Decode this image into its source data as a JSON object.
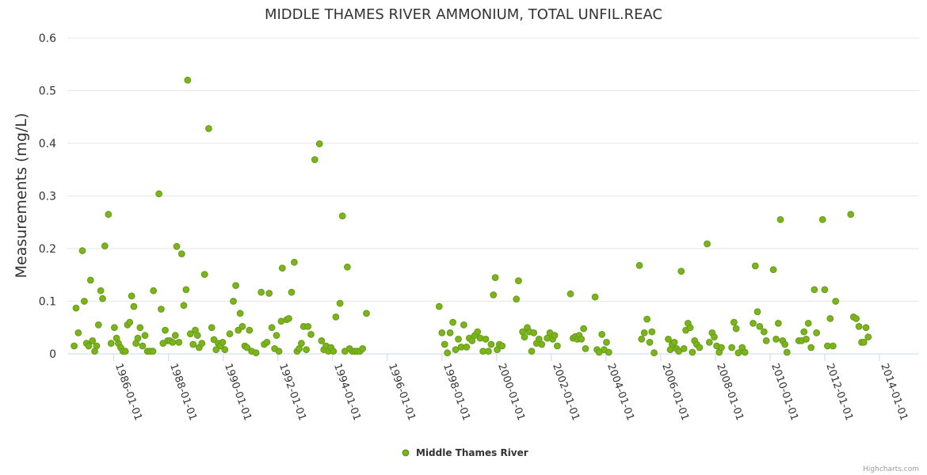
{
  "chart_data": {
    "type": "scatter",
    "title": "MIDDLE THAMES RIVER AMMONIUM, TOTAL UNFIL.REAC",
    "xlabel": "",
    "ylabel": "Measurements (mg/L)",
    "ylim": [
      0,
      0.6
    ],
    "yticks": [
      "0",
      "0.1",
      "0.2",
      "0.3",
      "0.4",
      "0.5",
      "0.6"
    ],
    "xlim": [
      1984.3,
      2015.45
    ],
    "xticks": [
      {
        "label": "1986-01-01",
        "value": 1986.0
      },
      {
        "label": "1988-01-01",
        "value": 1988.0
      },
      {
        "label": "1990-01-01",
        "value": 1990.0
      },
      {
        "label": "1992-01-01",
        "value": 1992.0
      },
      {
        "label": "1994-01-01",
        "value": 1994.0
      },
      {
        "label": "1996-01-01",
        "value": 1996.0
      },
      {
        "label": "1998-01-01",
        "value": 1998.0
      },
      {
        "label": "2000-01-01",
        "value": 2000.0
      },
      {
        "label": "2002-01-01",
        "value": 2002.0
      },
      {
        "label": "2004-01-01",
        "value": 2004.0
      },
      {
        "label": "2006-01-01",
        "value": 2006.0
      },
      {
        "label": "2008-01-01",
        "value": 2008.0
      },
      {
        "label": "2010-01-01",
        "value": 2010.0
      },
      {
        "label": "2012-01-01",
        "value": 2012.0
      },
      {
        "label": "2014-01-01",
        "value": 2014.0
      }
    ],
    "series": [
      {
        "name": "Middle Thames River",
        "color": "#6a9e1f",
        "fill": "#7cb518",
        "points": [
          [
            1984.55,
            0.015
          ],
          [
            1984.62,
            0.087
          ],
          [
            1984.7,
            0.04
          ],
          [
            1984.85,
            0.196
          ],
          [
            1984.92,
            0.1
          ],
          [
            1985.0,
            0.02
          ],
          [
            1985.08,
            0.015
          ],
          [
            1985.15,
            0.14
          ],
          [
            1985.22,
            0.025
          ],
          [
            1985.3,
            0.005
          ],
          [
            1985.37,
            0.015
          ],
          [
            1985.44,
            0.055
          ],
          [
            1985.52,
            0.12
          ],
          [
            1985.59,
            0.105
          ],
          [
            1985.67,
            0.205
          ],
          [
            1985.8,
            0.265
          ],
          [
            1985.9,
            0.02
          ],
          [
            1986.02,
            0.05
          ],
          [
            1986.1,
            0.03
          ],
          [
            1986.17,
            0.02
          ],
          [
            1986.25,
            0.012
          ],
          [
            1986.33,
            0.005
          ],
          [
            1986.42,
            0.005
          ],
          [
            1986.5,
            0.055
          ],
          [
            1986.58,
            0.06
          ],
          [
            1986.65,
            0.11
          ],
          [
            1986.73,
            0.09
          ],
          [
            1986.81,
            0.02
          ],
          [
            1986.88,
            0.03
          ],
          [
            1986.96,
            0.05
          ],
          [
            1987.05,
            0.015
          ],
          [
            1987.14,
            0.035
          ],
          [
            1987.23,
            0.005
          ],
          [
            1987.33,
            0.005
          ],
          [
            1987.43,
            0.005
          ],
          [
            1987.45,
            0.12
          ],
          [
            1987.65,
            0.304
          ],
          [
            1987.73,
            0.085
          ],
          [
            1987.8,
            0.02
          ],
          [
            1987.88,
            0.045
          ],
          [
            1987.97,
            0.025
          ],
          [
            1988.05,
            0.025
          ],
          [
            1988.15,
            0.022
          ],
          [
            1988.25,
            0.035
          ],
          [
            1988.3,
            0.204
          ],
          [
            1988.38,
            0.022
          ],
          [
            1988.48,
            0.19
          ],
          [
            1988.56,
            0.092
          ],
          [
            1988.64,
            0.122
          ],
          [
            1988.7,
            0.52
          ],
          [
            1988.8,
            0.038
          ],
          [
            1988.9,
            0.018
          ],
          [
            1988.98,
            0.045
          ],
          [
            1989.06,
            0.035
          ],
          [
            1989.12,
            0.012
          ],
          [
            1989.22,
            0.02
          ],
          [
            1989.32,
            0.151
          ],
          [
            1989.47,
            0.428
          ],
          [
            1989.58,
            0.05
          ],
          [
            1989.66,
            0.027
          ],
          [
            1989.74,
            0.008
          ],
          [
            1989.82,
            0.02
          ],
          [
            1989.9,
            0.015
          ],
          [
            1989.98,
            0.022
          ],
          [
            1990.06,
            0.008
          ],
          [
            1990.24,
            0.038
          ],
          [
            1990.37,
            0.1
          ],
          [
            1990.46,
            0.13
          ],
          [
            1990.55,
            0.045
          ],
          [
            1990.62,
            0.077
          ],
          [
            1990.7,
            0.052
          ],
          [
            1990.79,
            0.015
          ],
          [
            1990.87,
            0.012
          ],
          [
            1990.96,
            0.045
          ],
          [
            1991.04,
            0.005
          ],
          [
            1991.2,
            0.002
          ],
          [
            1991.39,
            0.117
          ],
          [
            1991.5,
            0.018
          ],
          [
            1991.6,
            0.022
          ],
          [
            1991.68,
            0.115
          ],
          [
            1991.78,
            0.05
          ],
          [
            1991.88,
            0.01
          ],
          [
            1991.95,
            0.035
          ],
          [
            1992.04,
            0.005
          ],
          [
            1992.12,
            0.062
          ],
          [
            1992.16,
            0.163
          ],
          [
            1992.32,
            0.065
          ],
          [
            1992.4,
            0.067
          ],
          [
            1992.5,
            0.117
          ],
          [
            1992.6,
            0.174
          ],
          [
            1992.7,
            0.005
          ],
          [
            1992.78,
            0.01
          ],
          [
            1992.86,
            0.02
          ],
          [
            1992.94,
            0.052
          ],
          [
            1993.04,
            0.008
          ],
          [
            1993.1,
            0.052
          ],
          [
            1993.21,
            0.037
          ],
          [
            1993.35,
            0.369
          ],
          [
            1993.52,
            0.399
          ],
          [
            1993.6,
            0.025
          ],
          [
            1993.68,
            0.008
          ],
          [
            1993.76,
            0.015
          ],
          [
            1993.85,
            0.005
          ],
          [
            1993.94,
            0.012
          ],
          [
            1994.03,
            0.005
          ],
          [
            1994.12,
            0.07
          ],
          [
            1994.27,
            0.096
          ],
          [
            1994.36,
            0.262
          ],
          [
            1994.45,
            0.005
          ],
          [
            1994.54,
            0.165
          ],
          [
            1994.62,
            0.01
          ],
          [
            1994.72,
            0.005
          ],
          [
            1994.81,
            0.005
          ],
          [
            1994.9,
            0.005
          ],
          [
            1995.0,
            0.005
          ],
          [
            1995.1,
            0.01
          ],
          [
            1995.24,
            0.077
          ],
          [
            1997.9,
            0.09
          ],
          [
            1998.0,
            0.04
          ],
          [
            1998.1,
            0.018
          ],
          [
            1998.2,
            0.002
          ],
          [
            1998.3,
            0.04
          ],
          [
            1998.4,
            0.06
          ],
          [
            1998.5,
            0.008
          ],
          [
            1998.6,
            0.028
          ],
          [
            1998.7,
            0.013
          ],
          [
            1998.8,
            0.055
          ],
          [
            1998.9,
            0.013
          ],
          [
            1999.0,
            0.03
          ],
          [
            1999.1,
            0.025
          ],
          [
            1999.2,
            0.035
          ],
          [
            1999.3,
            0.042
          ],
          [
            1999.4,
            0.03
          ],
          [
            1999.5,
            0.005
          ],
          [
            1999.6,
            0.028
          ],
          [
            1999.7,
            0.005
          ],
          [
            1999.8,
            0.018
          ],
          [
            1999.88,
            0.112
          ],
          [
            1999.95,
            0.145
          ],
          [
            2000.02,
            0.008
          ],
          [
            2000.1,
            0.018
          ],
          [
            2000.2,
            0.015
          ],
          [
            2000.72,
            0.104
          ],
          [
            2000.8,
            0.139
          ],
          [
            2000.95,
            0.042
          ],
          [
            2001.02,
            0.032
          ],
          [
            2001.12,
            0.05
          ],
          [
            2001.2,
            0.042
          ],
          [
            2001.28,
            0.005
          ],
          [
            2001.36,
            0.04
          ],
          [
            2001.46,
            0.02
          ],
          [
            2001.55,
            0.028
          ],
          [
            2001.65,
            0.018
          ],
          [
            2001.85,
            0.03
          ],
          [
            2001.95,
            0.04
          ],
          [
            2002.05,
            0.028
          ],
          [
            2002.12,
            0.035
          ],
          [
            2002.22,
            0.015
          ],
          [
            2002.7,
            0.114
          ],
          [
            2002.8,
            0.03
          ],
          [
            2002.88,
            0.033
          ],
          [
            2002.95,
            0.028
          ],
          [
            2003.02,
            0.035
          ],
          [
            2003.1,
            0.028
          ],
          [
            2003.18,
            0.048
          ],
          [
            2003.25,
            0.01
          ],
          [
            2003.6,
            0.108
          ],
          [
            2003.67,
            0.008
          ],
          [
            2003.75,
            0.003
          ],
          [
            2003.85,
            0.037
          ],
          [
            2003.93,
            0.008
          ],
          [
            2004.02,
            0.022
          ],
          [
            2004.1,
            0.003
          ],
          [
            2005.22,
            0.168
          ],
          [
            2005.3,
            0.028
          ],
          [
            2005.4,
            0.04
          ],
          [
            2005.5,
            0.066
          ],
          [
            2005.6,
            0.022
          ],
          [
            2005.68,
            0.042
          ],
          [
            2005.76,
            0.002
          ],
          [
            2006.28,
            0.028
          ],
          [
            2006.35,
            0.008
          ],
          [
            2006.42,
            0.018
          ],
          [
            2006.5,
            0.022
          ],
          [
            2006.58,
            0.01
          ],
          [
            2006.66,
            0.005
          ],
          [
            2006.75,
            0.157
          ],
          [
            2006.85,
            0.01
          ],
          [
            2006.92,
            0.045
          ],
          [
            2007.0,
            0.058
          ],
          [
            2007.08,
            0.05
          ],
          [
            2007.16,
            0.003
          ],
          [
            2007.24,
            0.025
          ],
          [
            2007.32,
            0.018
          ],
          [
            2007.42,
            0.012
          ],
          [
            2007.7,
            0.209
          ],
          [
            2007.78,
            0.022
          ],
          [
            2007.88,
            0.04
          ],
          [
            2007.96,
            0.032
          ],
          [
            2008.05,
            0.015
          ],
          [
            2008.14,
            0.003
          ],
          [
            2008.22,
            0.012
          ],
          [
            2008.6,
            0.012
          ],
          [
            2008.68,
            0.06
          ],
          [
            2008.76,
            0.048
          ],
          [
            2008.84,
            0.002
          ],
          [
            2008.98,
            0.012
          ],
          [
            2009.08,
            0.003
          ],
          [
            2009.38,
            0.058
          ],
          [
            2009.46,
            0.167
          ],
          [
            2009.54,
            0.08
          ],
          [
            2009.62,
            0.052
          ],
          [
            2009.78,
            0.042
          ],
          [
            2009.86,
            0.025
          ],
          [
            2010.12,
            0.16
          ],
          [
            2010.22,
            0.028
          ],
          [
            2010.3,
            0.058
          ],
          [
            2010.38,
            0.255
          ],
          [
            2010.46,
            0.025
          ],
          [
            2010.54,
            0.018
          ],
          [
            2010.62,
            0.003
          ],
          [
            2011.05,
            0.025
          ],
          [
            2011.15,
            0.025
          ],
          [
            2011.24,
            0.042
          ],
          [
            2011.32,
            0.028
          ],
          [
            2011.4,
            0.058
          ],
          [
            2011.5,
            0.012
          ],
          [
            2011.62,
            0.122
          ],
          [
            2011.7,
            0.04
          ],
          [
            2011.92,
            0.255
          ],
          [
            2012.0,
            0.122
          ],
          [
            2012.1,
            0.015
          ],
          [
            2012.2,
            0.067
          ],
          [
            2012.3,
            0.015
          ],
          [
            2012.4,
            0.1
          ],
          [
            2012.95,
            0.265
          ],
          [
            2013.05,
            0.07
          ],
          [
            2013.15,
            0.067
          ],
          [
            2013.25,
            0.052
          ],
          [
            2013.35,
            0.022
          ],
          [
            2013.43,
            0.022
          ],
          [
            2013.51,
            0.05
          ],
          [
            2013.59,
            0.032
          ]
        ]
      }
    ],
    "legend": {
      "position": "bottom-center",
      "label": "Middle Thames River"
    },
    "credits": "Highcharts.com"
  }
}
